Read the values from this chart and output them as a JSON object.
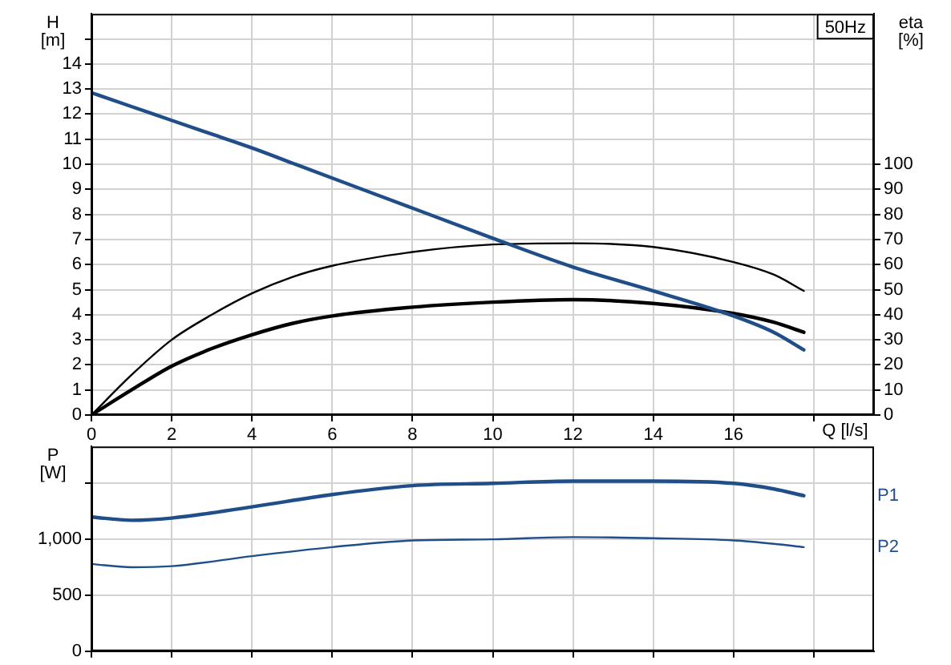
{
  "chart_data": [
    {
      "type": "line",
      "title": "50Hz",
      "xlabel": "Q [l/s]",
      "ylabel": "H [m]",
      "y2label": "eta [%]",
      "x": [
        0,
        1,
        2,
        3,
        4,
        5,
        6,
        8,
        10,
        12,
        14,
        16,
        17,
        17.75
      ],
      "series": [
        {
          "color": "#1f4e89",
          "values": [
            12.85,
            12.3,
            11.75,
            11.2,
            10.65,
            10.05,
            9.45,
            8.25,
            7.05,
            5.9,
            4.95,
            3.95,
            3.3,
            2.6
          ]
        },
        {
          "color": "#000000",
          "axis": "y2",
          "values": [
            0,
            16,
            30,
            40,
            48.5,
            55,
            59.5,
            65,
            68,
            68.5,
            67,
            61,
            56,
            49.5
          ]
        },
        {
          "color": "#000000",
          "axis": "y2",
          "values": [
            0,
            10,
            19.5,
            26.5,
            32,
            36.5,
            39.5,
            43,
            45,
            46,
            44.5,
            40.5,
            37,
            33
          ]
        }
      ],
      "xlim": [
        0,
        19.5
      ],
      "xticks": [
        0,
        2,
        4,
        6,
        8,
        10,
        12,
        14,
        16,
        {
          "value": 18,
          "label": null
        }
      ],
      "ylim": [
        0,
        16
      ],
      "yticks": [
        0,
        1,
        2,
        3,
        4,
        5,
        6,
        7,
        8,
        9,
        10,
        11,
        12,
        13,
        14,
        {
          "value": 15,
          "label": null
        }
      ],
      "y2lim": [
        0,
        160
      ],
      "y2ticks": [
        0,
        10,
        20,
        30,
        40,
        50,
        60,
        70,
        80,
        90,
        100
      ],
      "grid": true,
      "marker": "none"
    },
    {
      "type": "line",
      "ylabel": "P [W]",
      "x": [
        0,
        1,
        2,
        4,
        6,
        8,
        10,
        12,
        14,
        16,
        17,
        17.75
      ],
      "series": [
        {
          "name": "P1",
          "color": "#1f4e89",
          "values": [
            1200,
            1170,
            1190,
            1290,
            1400,
            1480,
            1500,
            1520,
            1520,
            1500,
            1450,
            1390
          ]
        },
        {
          "name": "P2",
          "color": "#1f4e89",
          "values": [
            780,
            750,
            760,
            850,
            930,
            990,
            1000,
            1020,
            1010,
            990,
            960,
            930
          ]
        }
      ],
      "xlim": [
        0,
        19.5
      ],
      "xticks": [
        0,
        2,
        4,
        6,
        8,
        10,
        12,
        14,
        16,
        18
      ],
      "ylim": [
        0,
        1830
      ],
      "yticks": [
        0,
        500,
        {
          "value": 1000,
          "label": "1,000"
        },
        {
          "value": 1500,
          "label": null
        }
      ],
      "tick_labels": "y",
      "grid": true,
      "marker": "none"
    }
  ]
}
